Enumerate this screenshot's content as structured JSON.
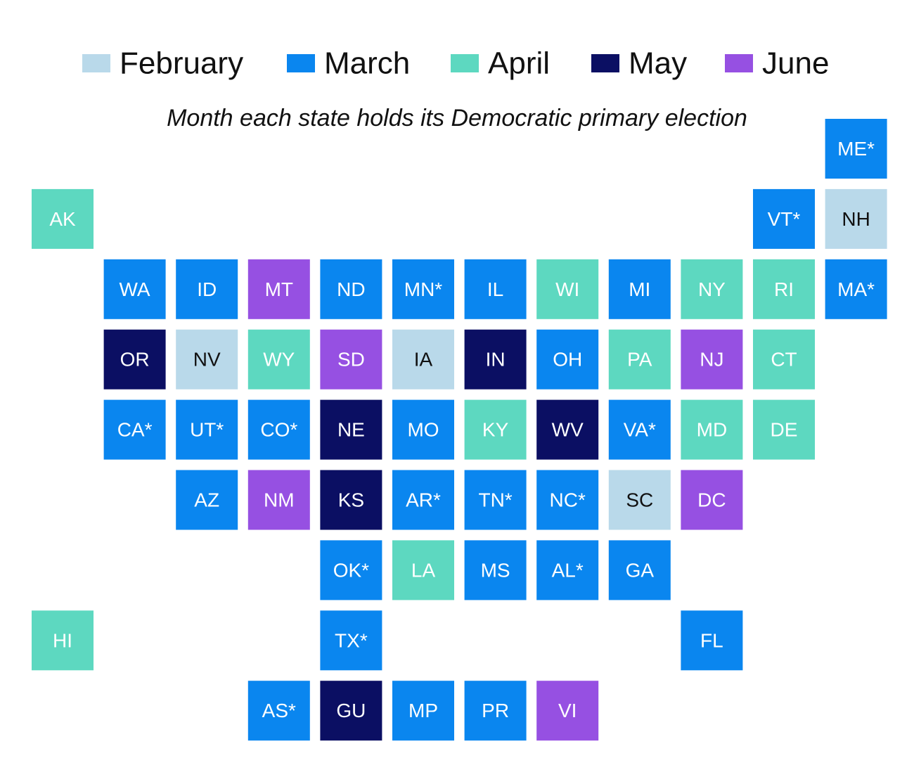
{
  "legend": [
    {
      "label": "February",
      "color": "#b9d9ea"
    },
    {
      "label": "March",
      "color": "#0a86ef"
    },
    {
      "label": "April",
      "color": "#5dd8c0"
    },
    {
      "label": "May",
      "color": "#0b0f63"
    },
    {
      "label": "June",
      "color": "#9650e2"
    }
  ],
  "subtitle": "Month each state holds its Democratic primary election",
  "tiles": [
    {
      "label": "ME*",
      "month": "March"
    },
    {
      "label": "AK",
      "month": "April"
    },
    {
      "label": "VT*",
      "month": "March"
    },
    {
      "label": "NH",
      "month": "February"
    },
    {
      "label": "WA",
      "month": "March"
    },
    {
      "label": "ID",
      "month": "March"
    },
    {
      "label": "MT",
      "month": "June"
    },
    {
      "label": "ND",
      "month": "March"
    },
    {
      "label": "MN*",
      "month": "March"
    },
    {
      "label": "IL",
      "month": "March"
    },
    {
      "label": "WI",
      "month": "April"
    },
    {
      "label": "MI",
      "month": "March"
    },
    {
      "label": "NY",
      "month": "April"
    },
    {
      "label": "RI",
      "month": "April"
    },
    {
      "label": "MA*",
      "month": "March"
    },
    {
      "label": "OR",
      "month": "May"
    },
    {
      "label": "NV",
      "month": "February"
    },
    {
      "label": "WY",
      "month": "April"
    },
    {
      "label": "SD",
      "month": "June"
    },
    {
      "label": "IA",
      "month": "February"
    },
    {
      "label": "IN",
      "month": "May"
    },
    {
      "label": "OH",
      "month": "March"
    },
    {
      "label": "PA",
      "month": "April"
    },
    {
      "label": "NJ",
      "month": "June"
    },
    {
      "label": "CT",
      "month": "April"
    },
    {
      "label": "CA*",
      "month": "March"
    },
    {
      "label": "UT*",
      "month": "March"
    },
    {
      "label": "CO*",
      "month": "March"
    },
    {
      "label": "NE",
      "month": "May"
    },
    {
      "label": "MO",
      "month": "March"
    },
    {
      "label": "KY",
      "month": "April"
    },
    {
      "label": "WV",
      "month": "May"
    },
    {
      "label": "VA*",
      "month": "March"
    },
    {
      "label": "MD",
      "month": "April"
    },
    {
      "label": "DE",
      "month": "April"
    },
    {
      "label": "AZ",
      "month": "March"
    },
    {
      "label": "NM",
      "month": "June"
    },
    {
      "label": "KS",
      "month": "May"
    },
    {
      "label": "AR*",
      "month": "March"
    },
    {
      "label": "TN*",
      "month": "March"
    },
    {
      "label": "NC*",
      "month": "March"
    },
    {
      "label": "SC",
      "month": "February"
    },
    {
      "label": "DC",
      "month": "June"
    },
    {
      "label": "OK*",
      "month": "March"
    },
    {
      "label": "LA",
      "month": "April"
    },
    {
      "label": "MS",
      "month": "March"
    },
    {
      "label": "AL*",
      "month": "March"
    },
    {
      "label": "GA",
      "month": "March"
    },
    {
      "label": "HI",
      "month": "April"
    },
    {
      "label": "TX*",
      "month": "March"
    },
    {
      "label": "FL",
      "month": "March"
    },
    {
      "label": "AS*",
      "month": "March"
    },
    {
      "label": "GU",
      "month": "May"
    },
    {
      "label": "MP",
      "month": "March"
    },
    {
      "label": "PR",
      "month": "March"
    },
    {
      "label": "VI",
      "month": "June"
    }
  ]
}
